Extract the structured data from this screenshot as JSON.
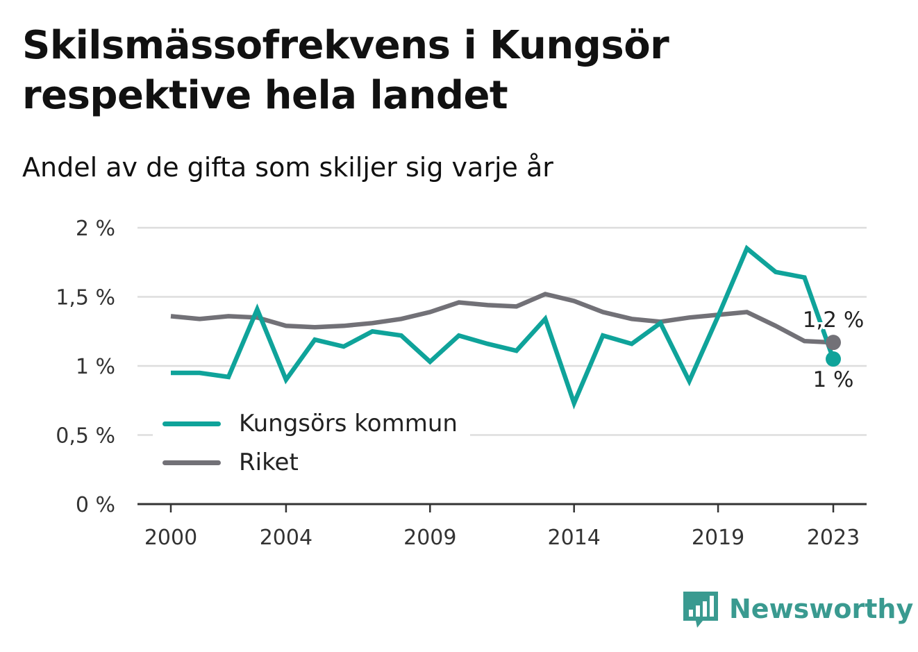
{
  "title": "Skilsmässofrekvens i Kungsör respektive hela landet",
  "subtitle": "Andel av de gifta som skiljer sig varje år",
  "brand": {
    "name": "Newsworthy",
    "icon": "bar-chart-logo-icon"
  },
  "colors": {
    "kungsor": "#0fa39a",
    "riket": "#727177",
    "grid": "#dddddd",
    "axis": "#333333"
  },
  "chart_data": {
    "type": "line",
    "x": [
      2000,
      2001,
      2002,
      2003,
      2004,
      2005,
      2006,
      2007,
      2008,
      2009,
      2010,
      2011,
      2012,
      2013,
      2014,
      2015,
      2016,
      2017,
      2018,
      2019,
      2020,
      2021,
      2022,
      2023
    ],
    "x_ticks": [
      2000,
      2004,
      2009,
      2014,
      2019,
      2023
    ],
    "x_tick_labels": [
      "2000",
      "2004",
      "2009",
      "2014",
      "2019",
      "2023"
    ],
    "y_ticks": [
      0,
      0.5,
      1,
      1.5,
      2
    ],
    "y_tick_labels": [
      "0 %",
      "0,5 %",
      "1 %",
      "1,5 %",
      "2 %"
    ],
    "ylim": [
      0,
      2
    ],
    "xlim": [
      2000,
      2023
    ],
    "grid": true,
    "legend_position": "bottom-left",
    "series": [
      {
        "name": "Kungsörs kommun",
        "color": "#0fa39a",
        "values": [
          0.95,
          0.95,
          0.92,
          1.41,
          0.9,
          1.19,
          1.14,
          1.25,
          1.22,
          1.03,
          1.22,
          1.16,
          1.11,
          1.34,
          0.73,
          1.22,
          1.16,
          1.31,
          0.89,
          1.36,
          1.85,
          1.68,
          1.64,
          1.05
        ],
        "end_label": "1 %"
      },
      {
        "name": "Riket",
        "color": "#727177",
        "values": [
          1.36,
          1.34,
          1.36,
          1.35,
          1.29,
          1.28,
          1.29,
          1.31,
          1.34,
          1.39,
          1.46,
          1.44,
          1.43,
          1.52,
          1.47,
          1.39,
          1.34,
          1.32,
          1.35,
          1.37,
          1.39,
          1.29,
          1.18,
          1.17
        ],
        "end_label": "1,2 %"
      }
    ]
  }
}
